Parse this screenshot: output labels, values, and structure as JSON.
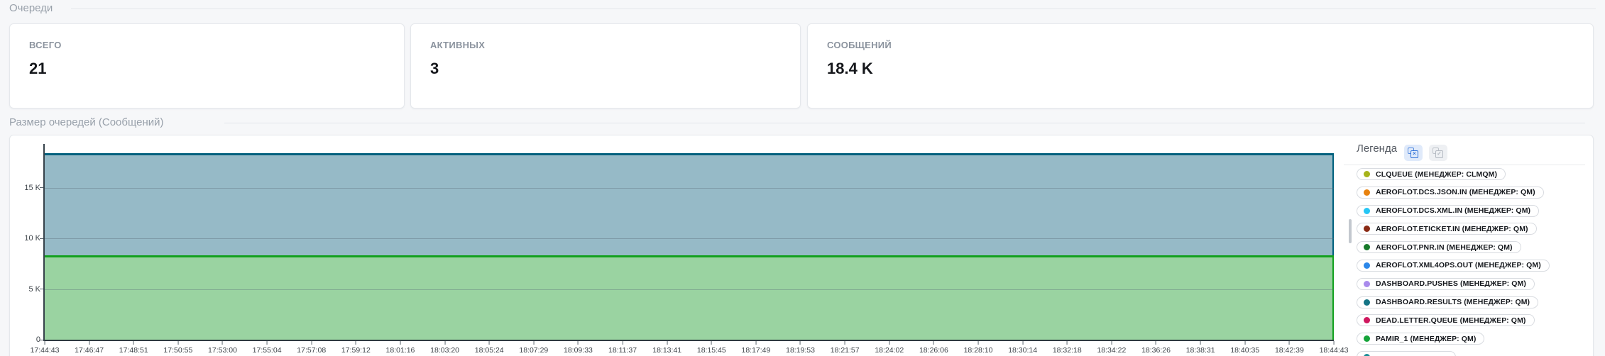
{
  "queues_section": {
    "title": "Очереди",
    "cards": [
      {
        "label": "ВСЕГО",
        "value": "21"
      },
      {
        "label": "АКТИВНЫХ",
        "value": "3"
      },
      {
        "label": "СООБЩЕНИЙ",
        "value": "18.4 K"
      }
    ]
  },
  "chart_section": {
    "title": "Размер очередей (Сообщений)",
    "legend": {
      "title": "Легенда",
      "buttons": [
        {
          "name": "deselect-all",
          "glyph": "×"
        },
        {
          "name": "select-all",
          "glyph": "✓"
        }
      ],
      "items": [
        {
          "label": "CLQUEUE (МЕНЕДЖЕР: CLMQM)",
          "color": "#a6b31a"
        },
        {
          "label": "AEROFLOT.DCS.JSON.IN (МЕНЕДЖЕР: QM)",
          "color": "#e8820e"
        },
        {
          "label": "AEROFLOT.DCS.XML.IN (МЕНЕДЖЕР: QM)",
          "color": "#25c6f5"
        },
        {
          "label": "AEROFLOT.ETICKET.IN (МЕНЕДЖЕР: QM)",
          "color": "#8a2a14"
        },
        {
          "label": "AEROFLOT.PNR.IN (МЕНЕДЖЕР: QM)",
          "color": "#177a2a"
        },
        {
          "label": "AEROFLOT.XML4OPS.OUT (МЕНЕДЖЕР: QM)",
          "color": "#2b87e9"
        },
        {
          "label": "DASHBOARD.PUSHES (МЕНЕДЖЕР: QM)",
          "color": "#a98bec"
        },
        {
          "label": "DASHBOARD.RESULTS (МЕНЕДЖЕР: QM)",
          "color": "#157485"
        },
        {
          "label": "DEAD.LETTER.QUEUE (МЕНЕДЖЕР: QM)",
          "color": "#cf175e"
        },
        {
          "label": "PAMIR_1 (МЕНЕДЖЕР: QM)",
          "color": "#15a339"
        },
        {
          "label": "",
          "color": "#1a8c96"
        }
      ]
    }
  },
  "chart_data": {
    "type": "area",
    "stacked": true,
    "title": "Размер очередей (Сообщений)",
    "grid": true,
    "legend_position": "right",
    "ylim": [
      0,
      19100
    ],
    "y_ticks": [
      {
        "label": "0",
        "value": 0
      },
      {
        "label": "5 K",
        "value": 5000
      },
      {
        "label": "10 K",
        "value": 10000
      },
      {
        "label": "15 K",
        "value": 15000
      }
    ],
    "x_ticks": [
      "17:44:43",
      "17:46:47",
      "17:48:51",
      "17:50:55",
      "17:53:00",
      "17:55:04",
      "17:57:08",
      "17:59:12",
      "18:01:16",
      "18:03:20",
      "18:05:24",
      "18:07:29",
      "18:09:33",
      "18:11:37",
      "18:13:41",
      "18:15:45",
      "18:17:49",
      "18:19:53",
      "18:21:57",
      "18:24:02",
      "18:26:06",
      "18:28:10",
      "18:30:14",
      "18:32:18",
      "18:34:22",
      "18:36:26",
      "18:38:31",
      "18:40:35",
      "18:42:39",
      "18:44:43"
    ],
    "series": [
      {
        "name": "PAMIR_1 (МЕНЕДЖЕР: QM)",
        "value_constant": 8300,
        "line_color": "#12a01e",
        "fill_color": "#9ad3a1"
      },
      {
        "name": "DASHBOARD.RESULTS (МЕНЕДЖЕР: QM)",
        "value_constant": 10100,
        "stack_top": 18400,
        "line_color": "#00607d",
        "fill_color": "#96bac7"
      }
    ]
  }
}
